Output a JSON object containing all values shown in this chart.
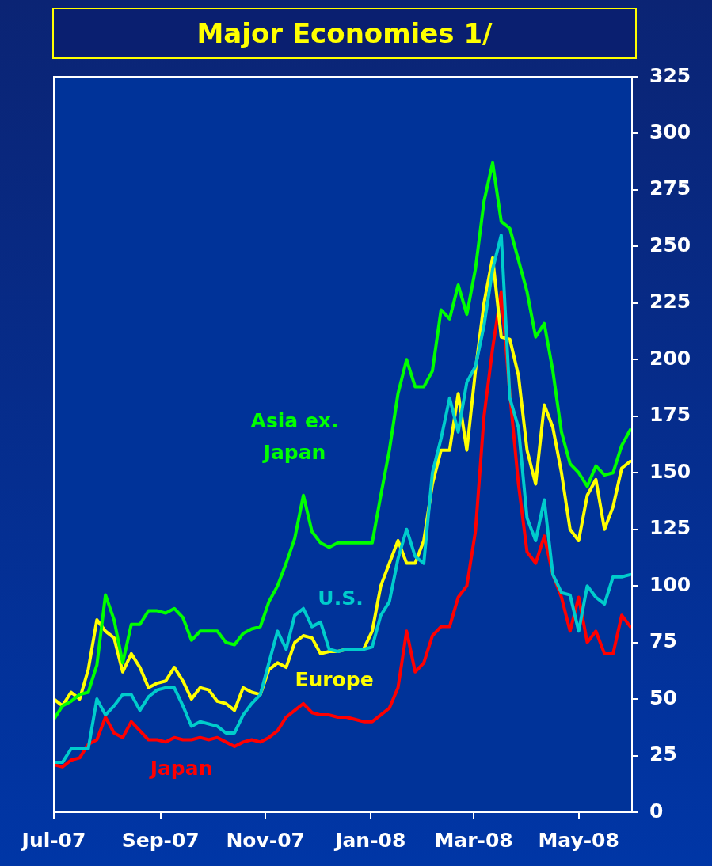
{
  "chart_data": {
    "type": "line",
    "title": "Major Economies 1/",
    "x": [
      "2007-07-01",
      "2007-07-06",
      "2007-07-11",
      "2007-07-16",
      "2007-07-21",
      "2007-07-26",
      "2007-07-31",
      "2007-08-05",
      "2007-08-10",
      "2007-08-15",
      "2007-08-20",
      "2007-08-25",
      "2007-08-30",
      "2007-09-04",
      "2007-09-09",
      "2007-09-14",
      "2007-09-19",
      "2007-09-24",
      "2007-09-29",
      "2007-10-04",
      "2007-10-09",
      "2007-10-14",
      "2007-10-19",
      "2007-10-24",
      "2007-10-29",
      "2007-11-03",
      "2007-11-08",
      "2007-11-13",
      "2007-11-18",
      "2007-11-23",
      "2007-11-28",
      "2007-12-03",
      "2007-12-08",
      "2007-12-13",
      "2007-12-18",
      "2007-12-23",
      "2007-12-28",
      "2008-01-02",
      "2008-01-07",
      "2008-01-12",
      "2008-01-17",
      "2008-01-22",
      "2008-01-27",
      "2008-02-01",
      "2008-02-06",
      "2008-02-11",
      "2008-02-16",
      "2008-02-21",
      "2008-02-26",
      "2008-03-02",
      "2008-03-07",
      "2008-03-12",
      "2008-03-17",
      "2008-03-22",
      "2008-03-27",
      "2008-04-01",
      "2008-04-06",
      "2008-04-11",
      "2008-04-16",
      "2008-04-21",
      "2008-04-26",
      "2008-05-01",
      "2008-05-06",
      "2008-05-11",
      "2008-05-16",
      "2008-05-21",
      "2008-05-26",
      "2008-05-31"
    ],
    "xlim": [
      "2007-07-01",
      "2008-06-01"
    ],
    "xticks": [
      {
        "value": "2007-07-01",
        "label": "Jul-07"
      },
      {
        "value": "2007-09-01",
        "label": "Sep-07"
      },
      {
        "value": "2007-11-01",
        "label": "Nov-07"
      },
      {
        "value": "2008-01-01",
        "label": "Jan-08"
      },
      {
        "value": "2008-03-01",
        "label": "Mar-08"
      },
      {
        "value": "2008-05-01",
        "label": "May-08"
      }
    ],
    "ylim": [
      0,
      325
    ],
    "yticks": [
      0,
      25,
      50,
      75,
      100,
      125,
      150,
      175,
      200,
      225,
      250,
      275,
      300,
      325
    ],
    "series": [
      {
        "name": "Asia ex. Japan",
        "color": "#00ff00",
        "values": [
          41,
          47,
          49,
          52,
          53,
          65,
          96,
          85,
          66,
          83,
          83,
          89,
          89,
          88,
          90,
          86,
          76,
          80,
          80,
          80,
          75,
          74,
          79,
          81,
          82,
          93,
          100,
          110,
          121,
          140,
          124,
          119,
          117,
          119,
          119,
          119,
          119,
          119,
          140,
          160,
          185,
          200,
          188,
          188,
          195,
          222,
          218,
          233,
          220,
          240,
          270,
          287,
          261,
          258,
          244,
          230,
          210,
          216,
          195,
          168,
          154,
          150,
          144,
          153,
          149,
          150,
          162,
          169
        ]
      },
      {
        "name": "U.S.",
        "color": "#00cccc",
        "values": [
          22,
          22,
          28,
          28,
          28,
          50,
          43,
          47,
          52,
          52,
          45,
          51,
          54,
          55,
          55,
          47,
          38,
          40,
          39,
          38,
          35,
          35,
          43,
          48,
          52,
          66,
          80,
          72,
          87,
          90,
          82,
          84,
          72,
          71,
          72,
          72,
          72,
          73,
          87,
          93,
          112,
          125,
          113,
          110,
          150,
          165,
          183,
          168,
          190,
          197,
          215,
          240,
          255,
          183,
          170,
          130,
          120,
          138,
          105,
          97,
          96,
          80,
          100,
          95,
          92,
          104,
          104,
          105
        ]
      },
      {
        "name": "Europe",
        "color": "#ffff00",
        "values": [
          50,
          47,
          53,
          50,
          63,
          85,
          80,
          77,
          62,
          70,
          64,
          55,
          57,
          58,
          64,
          58,
          50,
          55,
          54,
          49,
          48,
          45,
          55,
          53,
          52,
          63,
          66,
          64,
          75,
          78,
          77,
          70,
          71,
          71,
          72,
          72,
          72,
          80,
          100,
          110,
          120,
          110,
          110,
          120,
          145,
          160,
          160,
          185,
          160,
          195,
          225,
          245,
          210,
          209,
          193,
          160,
          145,
          180,
          170,
          150,
          125,
          120,
          140,
          147,
          125,
          135,
          152,
          155
        ]
      },
      {
        "name": "Japan",
        "color": "#ff0000",
        "values": [
          21,
          20,
          23,
          24,
          30,
          32,
          42,
          35,
          33,
          40,
          36,
          32,
          32,
          31,
          33,
          32,
          32,
          33,
          32,
          33,
          31,
          29,
          31,
          32,
          31,
          33,
          36,
          42,
          45,
          48,
          44,
          43,
          43,
          42,
          42,
          41,
          40,
          40,
          43,
          46,
          55,
          80,
          62,
          66,
          78,
          82,
          82,
          95,
          100,
          124,
          175,
          205,
          230,
          185,
          145,
          115,
          110,
          122,
          105,
          95,
          80,
          95,
          75,
          80,
          70,
          70,
          87,
          82
        ]
      }
    ]
  }
}
